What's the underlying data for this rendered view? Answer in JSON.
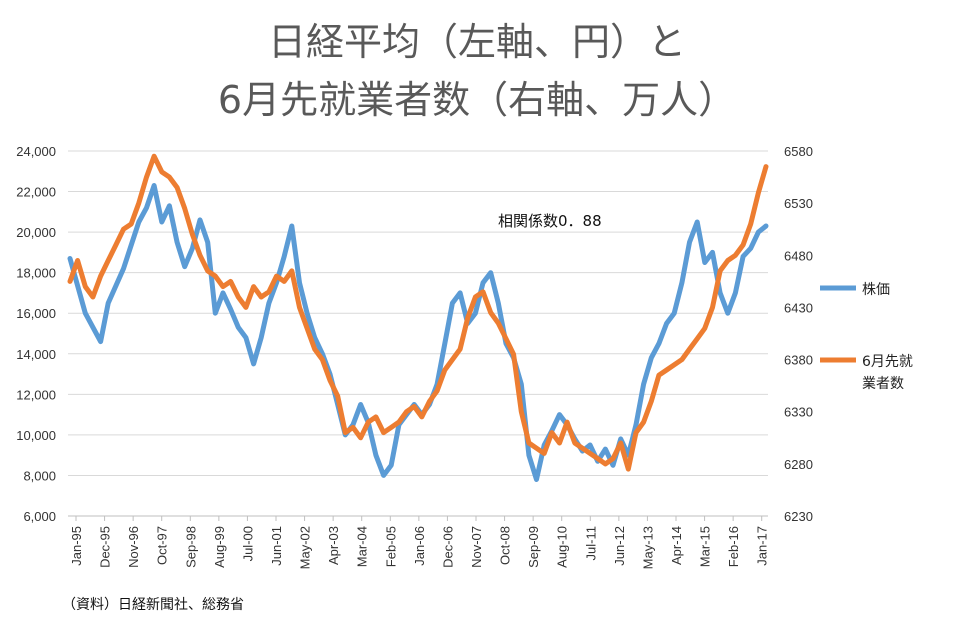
{
  "chart_data": {
    "type": "line",
    "title_line1": "日経平均（左軸、円）と",
    "title_line2": "6月先就業者数（右軸、万人）",
    "annotation": "相関係数0．88",
    "source": "（資料）日経新聞社、総務省",
    "y_left": {
      "min": 6000,
      "max": 24000,
      "ticks": [
        "6,000",
        "8,000",
        "10,000",
        "12,000",
        "14,000",
        "16,000",
        "18,000",
        "20,000",
        "22,000",
        "24,000"
      ]
    },
    "y_right": {
      "min": 6230,
      "max": 6580,
      "ticks": [
        "6230",
        "6280",
        "6330",
        "6380",
        "6430",
        "6480",
        "6530",
        "6580"
      ]
    },
    "x_labels": [
      "Jan-95",
      "Dec-95",
      "Nov-96",
      "Oct-97",
      "Sep-98",
      "Aug-99",
      "Jul-00",
      "Jun-01",
      "May-02",
      "Apr-03",
      "Mar-04",
      "Feb-05",
      "Jan-06",
      "Dec-06",
      "Nov-07",
      "Oct-08",
      "Sep-09",
      "Aug-10",
      "Jul-11",
      "Jun-12",
      "May-13",
      "Apr-14",
      "Mar-15",
      "Feb-16",
      "Jan-17"
    ],
    "legend": [
      {
        "name": "株価",
        "color": "#5b9bd5"
      },
      {
        "name": "6月先就\n業者数",
        "label_line1": "6月先就",
        "label_line2": "業者数",
        "color": "#ed7d31"
      }
    ],
    "series": [
      {
        "name": "株価",
        "axis": "left",
        "color": "#5b9bd5",
        "points": [
          [
            0,
            18700
          ],
          [
            2,
            16000
          ],
          [
            4,
            14600
          ],
          [
            5,
            16500
          ],
          [
            7,
            18200
          ],
          [
            9,
            20500
          ],
          [
            10,
            21200
          ],
          [
            11,
            22300
          ],
          [
            12,
            20500
          ],
          [
            13,
            21300
          ],
          [
            14,
            19500
          ],
          [
            15,
            18300
          ],
          [
            16,
            19200
          ],
          [
            17,
            20600
          ],
          [
            18,
            19500
          ],
          [
            19,
            16000
          ],
          [
            20,
            17000
          ],
          [
            21,
            16200
          ],
          [
            22,
            15300
          ],
          [
            23,
            14800
          ],
          [
            24,
            13500
          ],
          [
            25,
            14800
          ],
          [
            26,
            16500
          ],
          [
            27,
            17500
          ],
          [
            28,
            18800
          ],
          [
            29,
            20300
          ],
          [
            30,
            17500
          ],
          [
            31,
            16000
          ],
          [
            32,
            14800
          ],
          [
            33,
            14000
          ],
          [
            34,
            13000
          ],
          [
            35,
            11500
          ],
          [
            36,
            10000
          ],
          [
            37,
            10500
          ],
          [
            38,
            11500
          ],
          [
            39,
            10600
          ],
          [
            40,
            9000
          ],
          [
            41,
            8000
          ],
          [
            42,
            8500
          ],
          [
            43,
            10500
          ],
          [
            44,
            11000
          ],
          [
            45,
            11500
          ],
          [
            46,
            11000
          ],
          [
            47,
            11500
          ],
          [
            48,
            12500
          ],
          [
            49,
            14500
          ],
          [
            50,
            16500
          ],
          [
            51,
            17000
          ],
          [
            52,
            15500
          ],
          [
            53,
            16000
          ],
          [
            54,
            17500
          ],
          [
            55,
            18000
          ],
          [
            56,
            16500
          ],
          [
            57,
            14500
          ],
          [
            58,
            13800
          ],
          [
            59,
            12500
          ],
          [
            60,
            9000
          ],
          [
            61,
            7800
          ],
          [
            62,
            9500
          ],
          [
            63,
            10200
          ],
          [
            64,
            11000
          ],
          [
            65,
            10500
          ],
          [
            66,
            9800
          ],
          [
            67,
            9200
          ],
          [
            68,
            9500
          ],
          [
            69,
            8700
          ],
          [
            70,
            9300
          ],
          [
            71,
            8500
          ],
          [
            72,
            9800
          ],
          [
            73,
            9000
          ],
          [
            74,
            10500
          ],
          [
            75,
            12500
          ],
          [
            76,
            13800
          ],
          [
            77,
            14500
          ],
          [
            78,
            15500
          ],
          [
            79,
            16000
          ],
          [
            80,
            17500
          ],
          [
            81,
            19500
          ],
          [
            82,
            20500
          ],
          [
            83,
            18500
          ],
          [
            84,
            19000
          ],
          [
            85,
            17000
          ],
          [
            86,
            16000
          ],
          [
            87,
            17000
          ],
          [
            88,
            18800
          ],
          [
            89,
            19200
          ],
          [
            90,
            20000
          ],
          [
            91,
            20300
          ]
        ]
      },
      {
        "name": "6月先就業者数",
        "axis": "right",
        "color": "#ed7d31",
        "points": [
          [
            0,
            6455
          ],
          [
            1,
            6475
          ],
          [
            2,
            6450
          ],
          [
            3,
            6440
          ],
          [
            4,
            6460
          ],
          [
            5,
            6475
          ],
          [
            6,
            6490
          ],
          [
            7,
            6505
          ],
          [
            8,
            6510
          ],
          [
            9,
            6530
          ],
          [
            10,
            6555
          ],
          [
            11,
            6575
          ],
          [
            12,
            6560
          ],
          [
            13,
            6555
          ],
          [
            14,
            6545
          ],
          [
            15,
            6525
          ],
          [
            16,
            6500
          ],
          [
            17,
            6480
          ],
          [
            18,
            6465
          ],
          [
            19,
            6460
          ],
          [
            20,
            6450
          ],
          [
            21,
            6455
          ],
          [
            22,
            6440
          ],
          [
            23,
            6430
          ],
          [
            24,
            6450
          ],
          [
            25,
            6440
          ],
          [
            26,
            6445
          ],
          [
            27,
            6460
          ],
          [
            28,
            6455
          ],
          [
            29,
            6465
          ],
          [
            30,
            6430
          ],
          [
            31,
            6410
          ],
          [
            32,
            6390
          ],
          [
            33,
            6380
          ],
          [
            34,
            6360
          ],
          [
            35,
            6345
          ],
          [
            36,
            6310
          ],
          [
            37,
            6315
          ],
          [
            38,
            6305
          ],
          [
            39,
            6320
          ],
          [
            40,
            6325
          ],
          [
            41,
            6310
          ],
          [
            42,
            6315
          ],
          [
            43,
            6320
          ],
          [
            44,
            6330
          ],
          [
            45,
            6335
          ],
          [
            46,
            6325
          ],
          [
            47,
            6340
          ],
          [
            48,
            6350
          ],
          [
            49,
            6370
          ],
          [
            50,
            6380
          ],
          [
            51,
            6390
          ],
          [
            52,
            6420
          ],
          [
            53,
            6440
          ],
          [
            54,
            6445
          ],
          [
            55,
            6425
          ],
          [
            56,
            6415
          ],
          [
            57,
            6400
          ],
          [
            58,
            6385
          ],
          [
            59,
            6330
          ],
          [
            60,
            6300
          ],
          [
            61,
            6295
          ],
          [
            62,
            6290
          ],
          [
            63,
            6310
          ],
          [
            64,
            6300
          ],
          [
            65,
            6320
          ],
          [
            66,
            6300
          ],
          [
            67,
            6295
          ],
          [
            68,
            6290
          ],
          [
            69,
            6285
          ],
          [
            70,
            6280
          ],
          [
            71,
            6285
          ],
          [
            72,
            6300
          ],
          [
            73,
            6275
          ],
          [
            74,
            6310
          ],
          [
            75,
            6320
          ],
          [
            76,
            6340
          ],
          [
            77,
            6365
          ],
          [
            78,
            6370
          ],
          [
            79,
            6375
          ],
          [
            80,
            6380
          ],
          [
            81,
            6390
          ],
          [
            82,
            6400
          ],
          [
            83,
            6410
          ],
          [
            84,
            6430
          ],
          [
            85,
            6465
          ],
          [
            86,
            6475
          ],
          [
            87,
            6480
          ],
          [
            88,
            6490
          ],
          [
            89,
            6510
          ],
          [
            90,
            6540
          ],
          [
            91,
            6565
          ]
        ]
      }
    ]
  }
}
